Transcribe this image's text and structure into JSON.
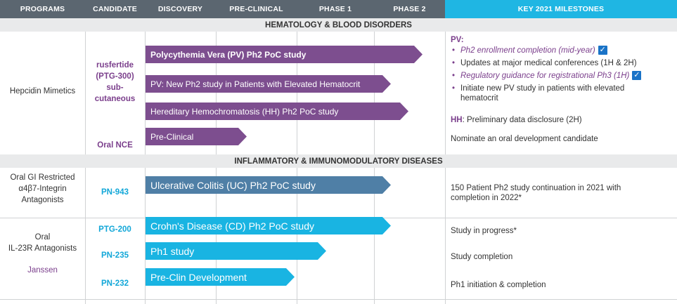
{
  "header": {
    "programs": "PROGRAMS",
    "candidate": "CANDIDATE",
    "discovery": "DISCOVERY",
    "preclinical": "PRE-CLINICAL",
    "phase1": "PHASE 1",
    "phase2": "PHASE 2",
    "milestones": "KEY 2021 MILESTONES"
  },
  "sections": {
    "hematology": "HEMATOLOGY & BLOOD DISORDERS",
    "inflammatory": "INFLAMMATORY & IMMUNOMODULATORY DISEASES"
  },
  "hepcidin": {
    "program": "Hepcidin Mimetics",
    "candidate1": [
      "rusfertide",
      "(PTG-300)",
      "sub-",
      "cutaneous"
    ],
    "candidate2": "Oral NCE",
    "bars": [
      "Polycythemia Vera (PV) Ph2 PoC study",
      "PV: New Ph2 study in Patients with Elevated Hematocrit",
      "Hereditary Hemochromatosis (HH) Ph2 PoC study",
      "Pre-Clinical"
    ],
    "milestones": {
      "pv_label": "PV:",
      "pv_items": [
        "Ph2 enrollment completion (mid-year)",
        "Updates at major medical conferences (1H & 2H)",
        "Regulatory guidance for registrational Ph3 (1H)",
        "Initiate new PV study in patients with elevated",
        "hematocrit"
      ],
      "hh_label": "HH",
      "hh_text": ": Preliminary data disclosure (2H)",
      "oral": "Nominate an oral development candidate"
    }
  },
  "gi": {
    "program": [
      "Oral GI Restricted",
      "α4β7-Integrin",
      "Antagonists"
    ],
    "candidate": "PN-943",
    "bar": "Ulcerative Colitis (UC) Ph2 PoC study",
    "milestone": [
      "150 Patient Ph2 study continuation in 2021 with",
      "completion in 2022*"
    ]
  },
  "il23": {
    "program": [
      "Oral",
      "IL-23R Antagonists"
    ],
    "partner": "Janssen",
    "candidates": [
      "PTG-200",
      "PN-235",
      "PN-232"
    ],
    "bars": [
      "Crohn's Disease (CD) Ph2 PoC study",
      "Ph1 study",
      "Pre-Clin Development"
    ],
    "milestones": [
      "Study in progress*",
      "Study completion",
      "Ph1 initiation & completion"
    ]
  },
  "colors": {
    "purple": "#7d4e8f",
    "blue": "#4f7fa6",
    "cyan": "#19b4e2",
    "header_gray": "#5b6670"
  },
  "icons": {
    "check": "checkbox-checked-icon"
  }
}
